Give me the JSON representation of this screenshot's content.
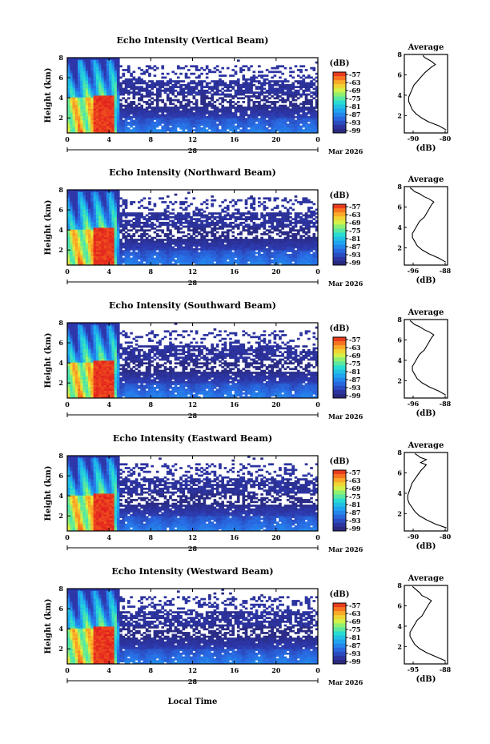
{
  "x_axis_label": "Local Time",
  "date_label": "Mar 2026",
  "day_label": "28",
  "colorbar_unit": "(dB)",
  "colorbar_ticks": [
    "-57",
    "-63",
    "-69",
    "-75",
    "-81",
    "-87",
    "-93",
    "-99"
  ],
  "average_title": "Average",
  "average_xlabel": "(dB)",
  "chart_data": [
    {
      "type": "heatmap",
      "title": "Echo Intensity (Vertical Beam)",
      "ylabel": "Height (km)",
      "xlabel": "Local Time",
      "x_ticks": [
        "0",
        "4",
        "8",
        "12",
        "16",
        "20",
        "0"
      ],
      "y_ticks": [
        "2",
        "4",
        "6",
        "8"
      ],
      "ylim": [
        0.5,
        8
      ],
      "xlim": [
        0,
        24
      ],
      "colorbar": {
        "unit": "dB",
        "range": [
          -99,
          -57
        ],
        "ticks": [
          -57,
          -63,
          -69,
          -75,
          -81,
          -87,
          -93,
          -99
        ]
      },
      "avg_profile": {
        "x_ticks": [
          "-90",
          "-80"
        ],
        "y_ticks": [
          "2",
          "4",
          "6",
          "8"
        ],
        "x": [
          -82,
          -84,
          -87,
          -89,
          -90.5,
          -91.5,
          -92,
          -92.5,
          -92.5,
          -92,
          -91.5,
          -91,
          -90,
          -89,
          -88,
          -87,
          -86,
          -85,
          -86,
          -87,
          -88,
          -88.5
        ],
        "y": [
          0.6,
          1.0,
          1.4,
          1.8,
          2.2,
          2.6,
          3.0,
          3.4,
          3.8,
          4.2,
          4.6,
          5.0,
          5.4,
          5.8,
          6.2,
          6.5,
          6.8,
          7.0,
          7.3,
          7.5,
          7.7,
          7.9
        ]
      }
    },
    {
      "type": "heatmap",
      "title": "Echo Intensity (Northward Beam)",
      "ylabel": "Height (km)",
      "xlabel": "Local Time",
      "x_ticks": [
        "0",
        "4",
        "8",
        "12",
        "16",
        "20",
        "0"
      ],
      "y_ticks": [
        "2",
        "4",
        "6",
        "8"
      ],
      "ylim": [
        0.5,
        8
      ],
      "xlim": [
        0,
        24
      ],
      "colorbar": {
        "unit": "dB",
        "range": [
          -99,
          -57
        ],
        "ticks": [
          -57,
          -63,
          -69,
          -75,
          -81,
          -87,
          -93,
          -99
        ]
      },
      "avg_profile": {
        "x_ticks": [
          "-96",
          "-88"
        ],
        "y_ticks": [
          "2",
          "4",
          "6",
          "8"
        ],
        "x": [
          -88.5,
          -90,
          -92,
          -93.5,
          -94.5,
          -95,
          -95.5,
          -95.5,
          -95,
          -94.5,
          -94,
          -93,
          -92.5,
          -92,
          -91.5,
          -91,
          -92,
          -93,
          -94,
          -95,
          -95.5,
          -96
        ],
        "y": [
          0.6,
          1.0,
          1.4,
          1.8,
          2.2,
          2.6,
          3.0,
          3.4,
          3.8,
          4.2,
          4.6,
          5.0,
          5.4,
          5.8,
          6.2,
          6.5,
          6.8,
          7.0,
          7.3,
          7.5,
          7.7,
          7.9
        ]
      }
    },
    {
      "type": "heatmap",
      "title": "Echo Intensity (Southward Beam)",
      "ylabel": "Height (km)",
      "xlabel": "Local Time",
      "x_ticks": [
        "0",
        "4",
        "8",
        "12",
        "16",
        "20",
        "0"
      ],
      "y_ticks": [
        "2",
        "4",
        "6",
        "8"
      ],
      "ylim": [
        0.5,
        8
      ],
      "xlim": [
        0,
        24
      ],
      "colorbar": {
        "unit": "dB",
        "range": [
          -99,
          -57
        ],
        "ticks": [
          -57,
          -63,
          -69,
          -75,
          -81,
          -87,
          -93,
          -99
        ]
      },
      "avg_profile": {
        "x_ticks": [
          "-96",
          "-88"
        ],
        "y_ticks": [
          "2",
          "4",
          "6",
          "8"
        ],
        "x": [
          -88.5,
          -90,
          -92,
          -93.5,
          -94.5,
          -95,
          -95.5,
          -95.5,
          -95,
          -94.5,
          -94,
          -93,
          -92.5,
          -92,
          -91.5,
          -91,
          -92,
          -93,
          -94,
          -95,
          -95.5,
          -96
        ],
        "y": [
          0.6,
          1.0,
          1.4,
          1.8,
          2.2,
          2.6,
          3.0,
          3.4,
          3.8,
          4.2,
          4.6,
          5.0,
          5.4,
          5.8,
          6.2,
          6.5,
          6.8,
          7.0,
          7.3,
          7.5,
          7.7,
          7.9
        ]
      }
    },
    {
      "type": "heatmap",
      "title": "Echo Intensity (Eastward Beam)",
      "ylabel": "Height (km)",
      "xlabel": "Local Time",
      "x_ticks": [
        "0",
        "4",
        "8",
        "12",
        "16",
        "20",
        "0"
      ],
      "y_ticks": [
        "2",
        "4",
        "6",
        "8"
      ],
      "ylim": [
        0.5,
        8
      ],
      "xlim": [
        0,
        24
      ],
      "colorbar": {
        "unit": "dB",
        "range": [
          -99,
          -57
        ],
        "ticks": [
          -57,
          -63,
          -69,
          -75,
          -81,
          -87,
          -93,
          -99
        ]
      },
      "avg_profile": {
        "x_ticks": [
          "-90",
          "-80"
        ],
        "y_ticks": [
          "2",
          "4",
          "6",
          "8"
        ],
        "x": [
          -79,
          -83,
          -86,
          -88.5,
          -90,
          -91,
          -92,
          -92.5,
          -92.5,
          -92,
          -91.5,
          -91,
          -90,
          -89,
          -88,
          -87,
          -86,
          -88,
          -86,
          -88,
          -89,
          -90
        ],
        "y": [
          0.6,
          1.0,
          1.4,
          1.8,
          2.2,
          2.6,
          3.0,
          3.4,
          3.8,
          4.2,
          4.6,
          5.0,
          5.4,
          5.8,
          6.2,
          6.5,
          6.8,
          7.0,
          7.3,
          7.5,
          7.7,
          7.9
        ]
      }
    },
    {
      "type": "heatmap",
      "title": "Echo Intensity (Westward Beam)",
      "ylabel": "Height (km)",
      "xlabel": "Local Time",
      "x_ticks": [
        "0",
        "4",
        "8",
        "12",
        "16",
        "20",
        "0"
      ],
      "y_ticks": [
        "2",
        "4",
        "6",
        "8"
      ],
      "ylim": [
        0.5,
        8
      ],
      "xlim": [
        0,
        24
      ],
      "colorbar": {
        "unit": "dB",
        "range": [
          -99,
          -57
        ],
        "ticks": [
          -57,
          -63,
          -69,
          -75,
          -81,
          -87,
          -93,
          -99
        ]
      },
      "avg_profile": {
        "x_ticks": [
          "-95",
          "-88"
        ],
        "y_ticks": [
          "2",
          "4",
          "6",
          "8"
        ],
        "x": [
          -88,
          -90,
          -92,
          -93.5,
          -94.5,
          -95,
          -95.5,
          -95.5,
          -95,
          -94.5,
          -94,
          -93,
          -92.5,
          -92,
          -91.5,
          -91,
          -92,
          -93,
          -93.5,
          -94,
          -94.5,
          -95
        ],
        "y": [
          0.6,
          1.0,
          1.4,
          1.8,
          2.2,
          2.6,
          3.0,
          3.4,
          3.8,
          4.2,
          4.6,
          5.0,
          5.4,
          5.8,
          6.2,
          6.5,
          6.8,
          7.0,
          7.3,
          7.5,
          7.7,
          7.9
        ]
      }
    }
  ]
}
